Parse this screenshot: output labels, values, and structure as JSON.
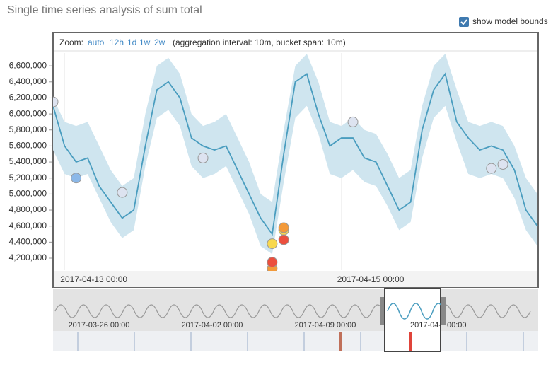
{
  "title": "Single time series analysis of sum total",
  "model_bounds_toggle": {
    "label": "show model bounds",
    "checked": true
  },
  "zoom": {
    "label": "Zoom:",
    "options": [
      "auto",
      "12h",
      "1d",
      "1w",
      "2w"
    ],
    "info": "(aggregation interval: 10m, bucket span: 10m)"
  },
  "chart_data": {
    "type": "line",
    "categories": [
      null,
      "2017-04-13 00:00",
      null,
      null,
      null,
      null,
      null,
      null,
      null,
      null,
      null,
      null,
      null,
      null,
      null,
      null,
      null,
      null,
      null,
      null,
      null,
      null,
      null,
      null,
      null,
      "2017-04-15 00:00",
      null,
      null,
      null,
      null,
      null,
      null,
      null,
      null,
      null,
      null,
      null,
      null,
      null,
      null,
      null,
      null,
      null
    ],
    "series": [
      {
        "color": "#4a9dbf",
        "values": [
          6100000,
          5600000,
          5400000,
          5450000,
          5100000,
          4900000,
          4700000,
          4800000,
          5600000,
          6300000,
          6400000,
          6200000,
          5700000,
          5600000,
          5550000,
          5600000,
          5300000,
          5000000,
          4700000,
          4500000,
          5500000,
          6400000,
          6500000,
          6000000,
          5600000,
          5700000,
          5700000,
          5450000,
          5400000,
          5100000,
          4800000,
          4900000,
          5800000,
          6300000,
          6500000,
          5900000,
          5700000,
          5550000,
          5600000,
          5550000,
          5300000,
          4800000,
          4600000
        ]
      }
    ],
    "model_bounds": {
      "color": "#cfe5ef",
      "upper": [
        6200000,
        5900000,
        5850000,
        5900000,
        5600000,
        5300000,
        5100000,
        5200000,
        6000000,
        6600000,
        6700000,
        6500000,
        6000000,
        5850000,
        5900000,
        6000000,
        5700000,
        5400000,
        5000000,
        4900000,
        5800000,
        6600000,
        6750000,
        6400000,
        5900000,
        5850000,
        5950000,
        5800000,
        5750000,
        5500000,
        5200000,
        5300000,
        6100000,
        6600000,
        6750000,
        6300000,
        5900000,
        5850000,
        5900000,
        5850000,
        5600000,
        5200000,
        5000000
      ],
      "lower": [
        5550000,
        5250000,
        5200000,
        5250000,
        4950000,
        4650000,
        4450000,
        4550000,
        5350000,
        5950000,
        6050000,
        5850000,
        5350000,
        5200000,
        5250000,
        5350000,
        5050000,
        4750000,
        4350000,
        4250000,
        5150000,
        5950000,
        6100000,
        5750000,
        5250000,
        5200000,
        5300000,
        5150000,
        5100000,
        4850000,
        4550000,
        4650000,
        5450000,
        5950000,
        6100000,
        5650000,
        5250000,
        5200000,
        5250000,
        5200000,
        4950000,
        4550000,
        4350000
      ]
    },
    "anomalies": [
      {
        "color": "#dde3f0",
        "values": [
          6150000,
          null,
          null,
          null,
          null,
          null,
          5020000,
          null,
          null,
          null,
          null,
          null,
          null,
          5450000,
          null,
          null,
          null,
          null,
          null,
          null,
          null,
          null,
          null,
          null,
          null,
          null,
          5900000,
          null,
          null,
          null,
          null,
          null,
          null,
          null,
          null,
          null,
          null,
          null,
          5320000,
          5370000,
          null,
          null,
          null
        ]
      },
      {
        "color": "#8bb8e8",
        "values": [
          null,
          null,
          5200000,
          null,
          null,
          null,
          null,
          null,
          null,
          null,
          null,
          null,
          null,
          null,
          null,
          null,
          null,
          null,
          null,
          null,
          null,
          null,
          null,
          null,
          null,
          null,
          null,
          null,
          null,
          null,
          null,
          null,
          null,
          null,
          null,
          null,
          null,
          null,
          null,
          null,
          null,
          null,
          null
        ]
      },
      {
        "color": "#f8d84e",
        "values": [
          null,
          null,
          null,
          null,
          null,
          null,
          null,
          null,
          null,
          null,
          null,
          null,
          null,
          null,
          null,
          null,
          null,
          null,
          null,
          4380000,
          4550000,
          null,
          null,
          null,
          null,
          null,
          null,
          null,
          null,
          null,
          null,
          null,
          null,
          null,
          null,
          null,
          null,
          null,
          null,
          null,
          null,
          null,
          null
        ]
      },
      {
        "color": "#f39a3a",
        "values": [
          null,
          null,
          null,
          null,
          null,
          null,
          null,
          null,
          null,
          null,
          null,
          null,
          null,
          null,
          null,
          null,
          null,
          null,
          null,
          4070000,
          4580000,
          null,
          null,
          null,
          null,
          null,
          null,
          null,
          null,
          null,
          null,
          null,
          null,
          null,
          null,
          null,
          null,
          null,
          null,
          null,
          null,
          null,
          null
        ]
      },
      {
        "color": "#ec4f3e",
        "values": [
          null,
          null,
          null,
          null,
          null,
          null,
          null,
          null,
          null,
          null,
          null,
          null,
          null,
          null,
          null,
          null,
          null,
          null,
          null,
          4150000,
          4430000,
          null,
          null,
          null,
          null,
          null,
          null,
          null,
          null,
          null,
          null,
          null,
          null,
          null,
          null,
          null,
          null,
          null,
          null,
          null,
          null,
          null,
          null
        ]
      }
    ],
    "ylim": [
      4050000,
      6760000
    ],
    "yticks": [
      {
        "value": 4200000,
        "label": "4,200,000"
      },
      {
        "value": 4400000,
        "label": "4,400,000"
      },
      {
        "value": 4600000,
        "label": "4,600,000"
      },
      {
        "value": 4800000,
        "label": "4,800,000"
      },
      {
        "value": 5000000,
        "label": "5,000,000"
      },
      {
        "value": 5200000,
        "label": "5,200,000"
      },
      {
        "value": 5400000,
        "label": "5,400,000"
      },
      {
        "value": 5600000,
        "label": "5,600,000"
      },
      {
        "value": 5800000,
        "label": "5,800,000"
      },
      {
        "value": 6000000,
        "label": "6,000,000"
      },
      {
        "value": 6200000,
        "label": "6,200,000"
      },
      {
        "value": 6400000,
        "label": "6,400,000"
      },
      {
        "value": 6600000,
        "label": "6,600,000"
      }
    ],
    "xgrid": true
  },
  "context": {
    "labels": [
      "2017-03-26 00:00",
      "2017-04-02 00:00",
      "2017-04-09 00:00",
      "2017-04-",
      "00:00"
    ]
  }
}
